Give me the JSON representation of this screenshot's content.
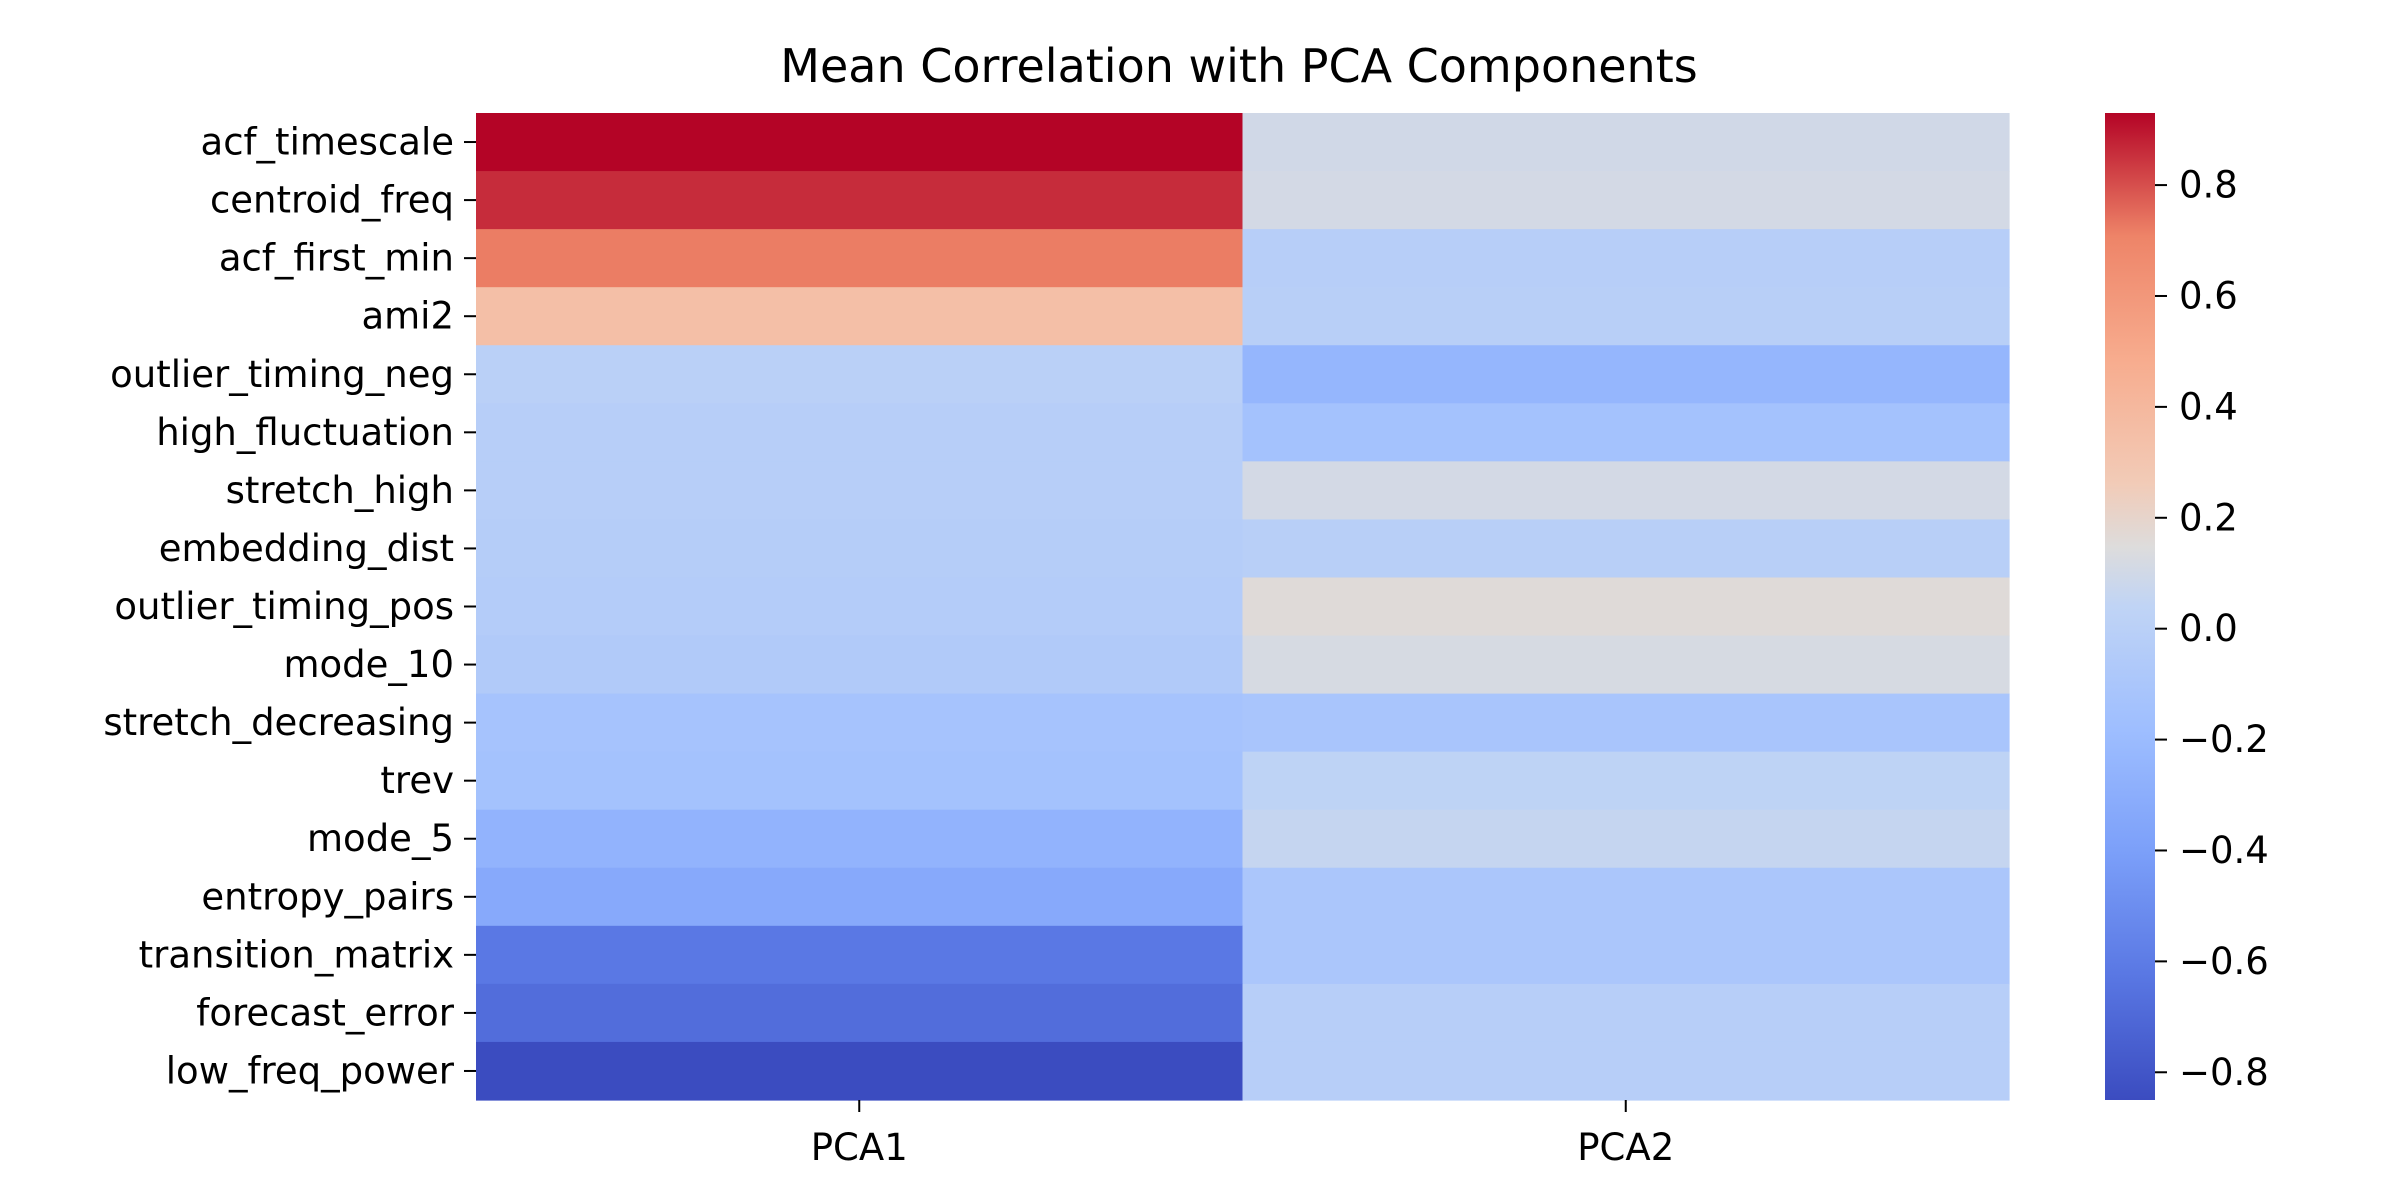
{
  "chart_data": {
    "type": "heatmap",
    "title": "Mean Correlation with PCA Components",
    "xlabel": "",
    "ylabel": "",
    "columns": [
      "PCA1",
      "PCA2"
    ],
    "rows": [
      "acf_timescale",
      "centroid_freq",
      "acf_first_min",
      "ami2",
      "outlier_timing_neg",
      "high_fluctuation",
      "stretch_high",
      "embedding_dist",
      "outlier_timing_pos",
      "mode_10",
      "stretch_decreasing",
      "trev",
      "mode_5",
      "entropy_pairs",
      "transition_matrix",
      "forecast_error",
      "low_freq_power"
    ],
    "values": [
      [
        0.93,
        0.1
      ],
      [
        0.86,
        0.11
      ],
      [
        0.72,
        -0.02
      ],
      [
        0.35,
        -0.01
      ],
      [
        0.0,
        -0.24
      ],
      [
        -0.02,
        -0.14
      ],
      [
        -0.02,
        0.11
      ],
      [
        -0.03,
        -0.01
      ],
      [
        -0.04,
        0.16
      ],
      [
        -0.06,
        0.12
      ],
      [
        -0.13,
        -0.11
      ],
      [
        -0.14,
        0.03
      ],
      [
        -0.26,
        0.06
      ],
      [
        -0.33,
        -0.1
      ],
      [
        -0.62,
        -0.1
      ],
      [
        -0.68,
        -0.02
      ],
      [
        -0.85,
        -0.02
      ]
    ],
    "colorbar": {
      "min": -0.85,
      "max": 0.93,
      "ticks": [
        0.8,
        0.6,
        0.4,
        0.2,
        0.0,
        -0.2,
        -0.4,
        -0.6,
        -0.8
      ],
      "tick_labels": [
        "0.8",
        "0.6",
        "0.4",
        "0.2",
        "0.0",
        "−0.2",
        "−0.4",
        "−0.6",
        "−0.8"
      ],
      "colormap": "coolwarm"
    }
  }
}
